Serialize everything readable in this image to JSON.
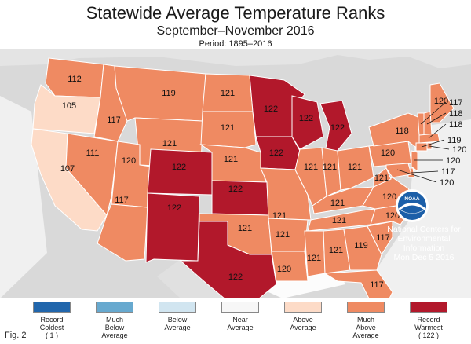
{
  "header": {
    "title": "Statewide Average Temperature Ranks",
    "subtitle": "September–November 2016",
    "period": "Period: 1895–2016"
  },
  "attribution": {
    "logo_text": "NOAA",
    "org_line1": "National Centers for",
    "org_line2": "Environmental",
    "org_line3": "Information",
    "date": "Mon Dec  5 2016"
  },
  "figure_label": "Fig. 2",
  "colors": {
    "record_coldest": "#2166ac",
    "much_below": "#67a9cf",
    "below": "#d1e5f0",
    "near": "#f7f7f7",
    "above": "#fddbc7",
    "much_above": "#ef8a62",
    "record_warmest": "#b2182b",
    "background": "#d9d9d9",
    "water": "#ffffff"
  },
  "legend": [
    {
      "key": "record_coldest",
      "lines": [
        "Record",
        "Coldest",
        "( 1 )"
      ]
    },
    {
      "key": "much_below",
      "lines": [
        "Much",
        "Below",
        "Average"
      ]
    },
    {
      "key": "below",
      "lines": [
        "Below",
        "Average"
      ]
    },
    {
      "key": "near",
      "lines": [
        "Near",
        "Average"
      ]
    },
    {
      "key": "above",
      "lines": [
        "Above",
        "Average"
      ]
    },
    {
      "key": "much_above",
      "lines": [
        "Much",
        "Above",
        "Average"
      ]
    },
    {
      "key": "record_warmest",
      "lines": [
        "Record",
        "Warmest",
        "( 122 )"
      ]
    }
  ],
  "states": [
    {
      "abbr": "WA",
      "rank": "112",
      "category": "much_above"
    },
    {
      "abbr": "OR",
      "rank": "105",
      "category": "above"
    },
    {
      "abbr": "CA",
      "rank": "107",
      "category": "above"
    },
    {
      "abbr": "ID",
      "rank": "117",
      "category": "much_above"
    },
    {
      "abbr": "NV",
      "rank": "111",
      "category": "much_above"
    },
    {
      "abbr": "MT",
      "rank": "119",
      "category": "much_above"
    },
    {
      "abbr": "WY",
      "rank": "121",
      "category": "much_above"
    },
    {
      "abbr": "UT",
      "rank": "120",
      "category": "much_above"
    },
    {
      "abbr": "AZ",
      "rank": "117",
      "category": "much_above"
    },
    {
      "abbr": "CO",
      "rank": "122",
      "category": "record_warmest"
    },
    {
      "abbr": "NM",
      "rank": "122",
      "category": "record_warmest"
    },
    {
      "abbr": "ND",
      "rank": "121",
      "category": "much_above"
    },
    {
      "abbr": "SD",
      "rank": "121",
      "category": "much_above"
    },
    {
      "abbr": "NE",
      "rank": "121",
      "category": "much_above"
    },
    {
      "abbr": "KS",
      "rank": "122",
      "category": "record_warmest"
    },
    {
      "abbr": "OK",
      "rank": "121",
      "category": "much_above"
    },
    {
      "abbr": "TX",
      "rank": "122",
      "category": "record_warmest"
    },
    {
      "abbr": "MN",
      "rank": "122",
      "category": "record_warmest"
    },
    {
      "abbr": "IA",
      "rank": "122",
      "category": "record_warmest"
    },
    {
      "abbr": "MO",
      "rank": "121",
      "category": "much_above"
    },
    {
      "abbr": "AR",
      "rank": "121",
      "category": "much_above"
    },
    {
      "abbr": "LA",
      "rank": "120",
      "category": "much_above"
    },
    {
      "abbr": "WI",
      "rank": "122",
      "category": "record_warmest"
    },
    {
      "abbr": "MI",
      "rank": "122",
      "category": "record_warmest"
    },
    {
      "abbr": "IL",
      "rank": "121",
      "category": "much_above"
    },
    {
      "abbr": "IN",
      "rank": "121",
      "category": "much_above"
    },
    {
      "abbr": "OH",
      "rank": "121",
      "category": "much_above"
    },
    {
      "abbr": "KY",
      "rank": "121",
      "category": "much_above"
    },
    {
      "abbr": "TN",
      "rank": "121",
      "category": "much_above"
    },
    {
      "abbr": "MS",
      "rank": "121",
      "category": "much_above"
    },
    {
      "abbr": "AL",
      "rank": "121",
      "category": "much_above"
    },
    {
      "abbr": "GA",
      "rank": "119",
      "category": "much_above"
    },
    {
      "abbr": "FL",
      "rank": "117",
      "category": "much_above"
    },
    {
      "abbr": "SC",
      "rank": "117",
      "category": "much_above"
    },
    {
      "abbr": "NC",
      "rank": "120",
      "category": "much_above"
    },
    {
      "abbr": "VA",
      "rank": "120",
      "category": "much_above"
    },
    {
      "abbr": "WV",
      "rank": "121",
      "category": "much_above"
    },
    {
      "abbr": "PA",
      "rank": "120",
      "category": "much_above"
    },
    {
      "abbr": "NY",
      "rank": "118",
      "category": "much_above"
    },
    {
      "abbr": "ME",
      "rank": "120",
      "category": "much_above"
    },
    {
      "abbr": "VT",
      "rank": "117",
      "category": "much_above"
    },
    {
      "abbr": "NH",
      "rank": "118",
      "category": "much_above"
    },
    {
      "abbr": "MA",
      "rank": "118",
      "category": "much_above"
    },
    {
      "abbr": "CT",
      "rank": "119",
      "category": "much_above"
    },
    {
      "abbr": "NJ",
      "rank": "120",
      "category": "much_above"
    },
    {
      "abbr": "DE",
      "rank": "117",
      "category": "much_above"
    },
    {
      "abbr": "MD",
      "rank": "120",
      "category": "much_above"
    },
    {
      "abbr": "RI",
      "rank": "120",
      "category": "much_above"
    }
  ]
}
